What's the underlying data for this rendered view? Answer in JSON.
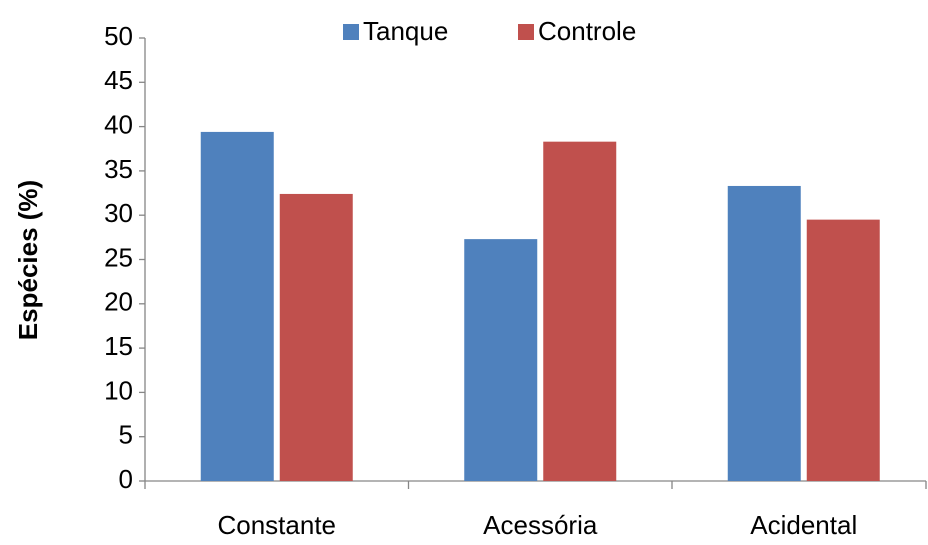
{
  "chart_data": {
    "type": "bar",
    "y_label": "Espécies  (%)",
    "categories": [
      "Constante",
      "Acessória",
      "Acidental"
    ],
    "series": [
      {
        "name": "Tanque",
        "color": "#4f81bd",
        "values": [
          39.4,
          27.3,
          33.3
        ]
      },
      {
        "name": "Controle",
        "color": "#c0504d",
        "values": [
          32.4,
          38.3,
          29.5
        ]
      }
    ],
    "ylim": [
      0,
      50
    ],
    "yticks": [
      0,
      5,
      10,
      15,
      20,
      25,
      30,
      35,
      40,
      45,
      50
    ],
    "grid": false,
    "legend": "top"
  }
}
